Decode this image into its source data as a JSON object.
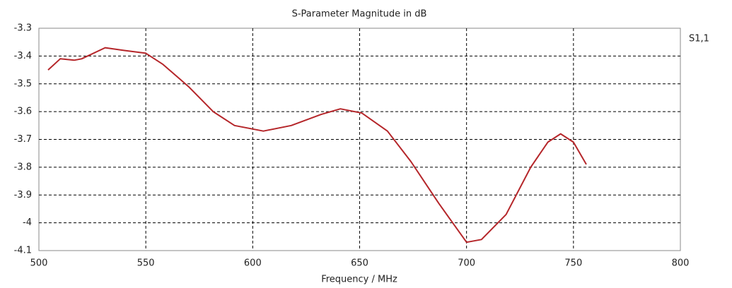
{
  "chart_data": {
    "type": "line",
    "title": "S-Parameter Magnitude in dB",
    "x_label": "Frequency / MHz",
    "x": [
      504.3,
      510,
      516.5,
      520,
      531,
      540,
      550,
      558,
      570,
      581.5,
      591.5,
      605,
      618,
      632,
      641,
      651,
      663,
      674,
      687,
      700,
      707,
      718.5,
      730,
      738,
      744,
      750,
      756
    ],
    "series": [
      {
        "name": "S1,1",
        "color": "#b5262a",
        "values": [
          -3.45,
          -3.41,
          -3.415,
          -3.41,
          -3.37,
          -3.38,
          -3.39,
          -3.43,
          -3.51,
          -3.6,
          -3.65,
          -3.67,
          -3.65,
          -3.61,
          -3.59,
          -3.605,
          -3.67,
          -3.78,
          -3.93,
          -4.07,
          -4.06,
          -3.97,
          -3.8,
          -3.71,
          -3.68,
          -3.71,
          -3.79
        ]
      }
    ],
    "xlim": [
      500,
      800
    ],
    "xticks": [
      500,
      550,
      600,
      650,
      700,
      750,
      800
    ],
    "ylim": [
      -4.1,
      -3.3
    ],
    "yticks": [
      -4.1,
      -4,
      -3.9,
      -3.8,
      -3.7,
      -3.6,
      -3.5,
      -3.4,
      -3.3
    ],
    "grid": true,
    "legend": "right"
  }
}
